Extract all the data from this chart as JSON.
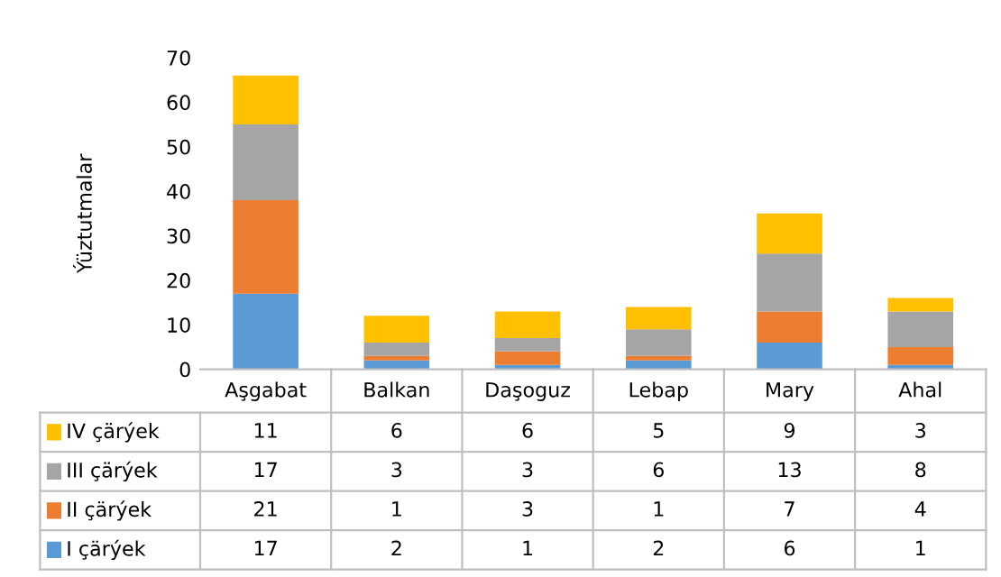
{
  "chart_data": {
    "type": "bar",
    "stacked": true,
    "ylabel": "Ýüztutmalar",
    "categories": [
      "Aşgabat",
      "Balkan",
      "Daşoguz",
      "Lebap",
      "Mary",
      "Ahal"
    ],
    "series": [
      {
        "name": "I çärýek",
        "color": "#5b9bd5",
        "values": [
          17,
          2,
          1,
          2,
          6,
          1
        ]
      },
      {
        "name": "II çärýek",
        "color": "#ed7d31",
        "values": [
          21,
          1,
          3,
          1,
          7,
          4
        ]
      },
      {
        "name": "III çärýek",
        "color": "#a5a5a5",
        "values": [
          17,
          3,
          3,
          6,
          13,
          8
        ]
      },
      {
        "name": "IV çärýek",
        "color": "#ffc000",
        "values": [
          11,
          6,
          6,
          5,
          9,
          3
        ]
      }
    ],
    "ylim": [
      0,
      70
    ],
    "yticks": [
      0,
      10,
      20,
      30,
      40,
      50,
      60,
      70
    ],
    "grid": false,
    "data_labels": true,
    "legend": "bottom"
  }
}
